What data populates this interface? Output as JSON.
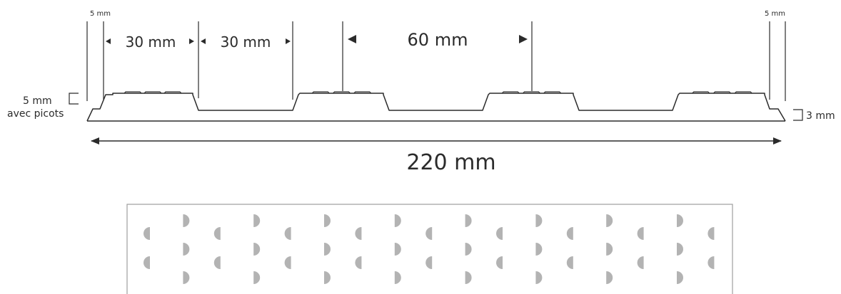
{
  "labels": {
    "margin_left": "5 mm",
    "margin_right": "5 mm",
    "gap_1": "30 mm",
    "gap_2": "30 mm",
    "gap_3": "60 mm",
    "height_studs": "5 mm",
    "height_studs_caption": "avec picots",
    "base_thickness": "3 mm",
    "total_width": "220 mm"
  },
  "colors": {
    "line": "#2b2b2b",
    "dot": "#b3b3b3",
    "panel_border": "#9e9e9e"
  },
  "pattern": {
    "icons": [
      "left-half-dot-icon",
      "right-half-dot-icon"
    ]
  }
}
